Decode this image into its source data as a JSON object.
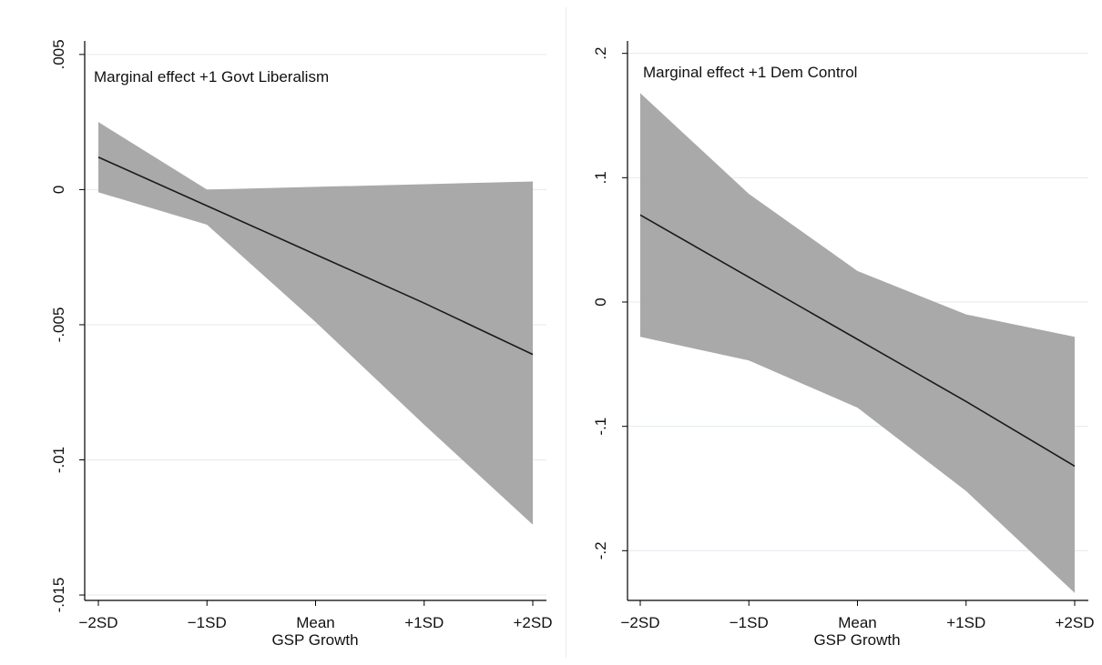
{
  "chart_data": [
    {
      "type": "line",
      "annotation": "Marginal effect +1 Govt Liberalism",
      "xlabel": "GSP Growth",
      "ylabel": "",
      "categories": [
        "−2SD",
        "−1SD",
        "Mean",
        "+1SD",
        "+2SD"
      ],
      "ylim": [
        -0.0152,
        0.0055
      ],
      "y_ticks": [
        0.005,
        0,
        -0.005,
        -0.01,
        -0.015
      ],
      "y_tick_labels": [
        ".005",
        "0",
        "-.005",
        "-.01",
        "-.015"
      ],
      "grid": true,
      "series": [
        {
          "role": "estimate",
          "values": [
            0.0012,
            -0.0006,
            -0.0024,
            -0.0042,
            -0.0061
          ]
        },
        {
          "role": "ci_upper",
          "values": [
            0.0025,
            0.0,
            0.0001,
            0.0002,
            0.0003
          ]
        },
        {
          "role": "ci_lower",
          "values": [
            -0.0001,
            -0.0013,
            -0.0049,
            -0.0087,
            -0.0124
          ]
        }
      ],
      "colors": {
        "band": "#a9a9a9",
        "line": "#1a1a1a",
        "grid": "#e3eaee",
        "axis": "#000000"
      }
    },
    {
      "type": "line",
      "annotation": "Marginal effect +1 Dem Control",
      "xlabel": "GSP Growth",
      "ylabel": "",
      "categories": [
        "−2SD",
        "−1SD",
        "Mean",
        "+1SD",
        "+2SD"
      ],
      "ylim": [
        -0.24,
        0.21
      ],
      "y_ticks": [
        0.2,
        0.1,
        0,
        -0.1,
        -0.2
      ],
      "y_tick_labels": [
        ".2",
        ".1",
        "0",
        "-.1",
        "-.2"
      ],
      "grid": true,
      "series": [
        {
          "role": "estimate",
          "values": [
            0.07,
            0.02,
            -0.03,
            -0.08,
            -0.132
          ]
        },
        {
          "role": "ci_upper",
          "values": [
            0.168,
            0.087,
            0.025,
            -0.01,
            -0.028
          ]
        },
        {
          "role": "ci_lower",
          "values": [
            -0.028,
            -0.047,
            -0.085,
            -0.152,
            -0.234
          ]
        }
      ],
      "colors": {
        "band": "#a9a9a9",
        "line": "#1a1a1a",
        "grid": "#e3eaee",
        "axis": "#000000"
      }
    }
  ]
}
